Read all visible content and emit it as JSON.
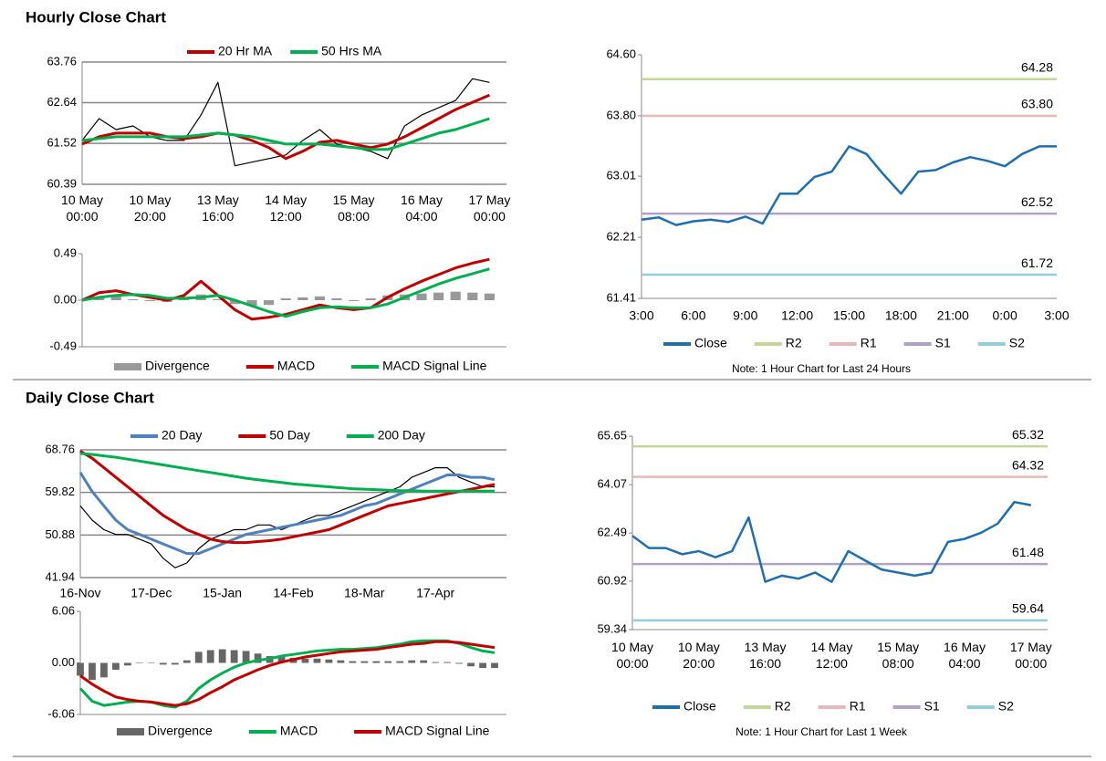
{
  "sections": [
    "Hourly Close Chart",
    "Daily Close Chart"
  ],
  "chart_data": [
    {
      "type": "line",
      "grid": true,
      "categories": [
        "10 May\n00:00",
        null,
        null,
        null,
        "10 May\n20:00",
        null,
        null,
        null,
        "13 May\n16:00",
        null,
        null,
        null,
        "14 May\n12:00",
        null,
        null,
        null,
        "15 May\n08:00",
        null,
        null,
        null,
        "16 May\n04:00",
        null,
        null,
        null,
        "17 May\n00:00"
      ],
      "ylim": [
        60.39,
        63.76
      ],
      "yticks": [
        60.39,
        61.52,
        62.64,
        63.76
      ],
      "values": [
        61.6,
        62.2,
        61.9,
        62.0,
        61.7,
        61.6,
        61.6,
        62.3,
        63.2,
        60.9,
        61.0,
        61.1,
        61.2,
        61.6,
        61.9,
        61.5,
        61.4,
        61.3,
        61.1,
        62.0,
        62.3,
        62.5,
        62.7,
        63.3,
        63.2
      ],
      "color": "#000000",
      "series": [
        {
          "name": "20 Hr MA",
          "color": "#c00000",
          "values": [
            61.5,
            61.7,
            61.8,
            61.8,
            61.8,
            61.7,
            61.65,
            61.7,
            61.8,
            61.75,
            61.6,
            61.4,
            61.1,
            61.3,
            61.55,
            61.6,
            61.5,
            61.4,
            61.5,
            61.7,
            61.95,
            62.2,
            62.45,
            62.65,
            62.85
          ]
        },
        {
          "name": "50 Hrs MA",
          "color": "#00b050",
          "values": [
            61.6,
            61.65,
            61.7,
            61.7,
            61.7,
            61.7,
            61.7,
            61.75,
            61.8,
            61.75,
            61.7,
            61.6,
            61.5,
            61.5,
            61.5,
            61.45,
            61.4,
            61.35,
            61.35,
            61.5,
            61.65,
            61.8,
            61.9,
            62.05,
            62.2
          ]
        }
      ]
    },
    {
      "type": "combo",
      "grid": false,
      "ylim": [
        -0.49,
        0.49
      ],
      "yticks": [
        -0.49,
        {
          "value": 0,
          "label": "0.00"
        },
        0.49
      ],
      "series": [
        {
          "name": "Divergence",
          "kind": "bar",
          "color": "#999999",
          "values": [
            0,
            0.03,
            0.04,
            0.01,
            -0.01,
            -0.02,
            0.02,
            0.06,
            0.01,
            -0.04,
            -0.06,
            -0.05,
            0.02,
            0.03,
            0.04,
            0.02,
            -0.01,
            0.02,
            0.05,
            0.06,
            0.07,
            0.08,
            0.09,
            0.08,
            0.07
          ]
        },
        {
          "name": "MACD",
          "color": "#c00000",
          "values": [
            0.0,
            0.08,
            0.1,
            0.06,
            0.03,
            0.0,
            0.05,
            0.2,
            0.05,
            -0.1,
            -0.2,
            -0.18,
            -0.15,
            -0.1,
            -0.05,
            -0.08,
            -0.1,
            -0.08,
            0.03,
            0.12,
            0.2,
            0.27,
            0.34,
            0.39,
            0.43
          ]
        },
        {
          "name": "MACD Signal Line",
          "color": "#00b050",
          "values": [
            0.0,
            0.03,
            0.05,
            0.06,
            0.05,
            0.02,
            0.02,
            0.03,
            0.05,
            0.0,
            -0.06,
            -0.12,
            -0.17,
            -0.12,
            -0.08,
            -0.07,
            -0.08,
            -0.08,
            -0.04,
            0.03,
            0.1,
            0.17,
            0.23,
            0.28,
            0.33
          ]
        }
      ]
    },
    {
      "type": "line",
      "grid": false,
      "categories": [
        "3:00",
        null,
        null,
        "6:00",
        null,
        null,
        "9:00",
        null,
        null,
        "12:00",
        null,
        null,
        "15:00",
        null,
        null,
        "18:00",
        null,
        null,
        "21:00",
        null,
        null,
        "0:00",
        null,
        null,
        "3:00"
      ],
      "ylim": [
        61.41,
        64.6
      ],
      "yticks": [
        61.41,
        62.21,
        63.01,
        {
          "value": 63.8,
          "label": "63.80"
        },
        {
          "value": 64.6,
          "label": "64.60"
        }
      ],
      "series": [
        {
          "name": "Close",
          "color": "#1f6fb0",
          "values": [
            62.44,
            62.47,
            62.37,
            62.42,
            62.44,
            62.41,
            62.48,
            62.39,
            62.78,
            62.78,
            63.0,
            63.07,
            63.4,
            63.3,
            63.03,
            62.78,
            63.07,
            63.09,
            63.19,
            63.26,
            63.21,
            63.14,
            63.3,
            63.4,
            63.4
          ]
        }
      ],
      "levels": [
        {
          "name": "R2",
          "color": "#c3d69b",
          "value": 64.28
        },
        {
          "name": "R1",
          "color": "#e6b9b8",
          "value": 63.8,
          "label": "63.80"
        },
        {
          "name": "S1",
          "color": "#b3a2c7",
          "value": 62.52
        },
        {
          "name": "S2",
          "color": "#93cddd",
          "value": 61.72
        }
      ],
      "note": "Note: 1 Hour Chart for Last 24 Hours"
    },
    {
      "type": "line",
      "grid": true,
      "categories": [
        "16-Nov",
        null,
        null,
        null,
        null,
        null,
        "17-Dec",
        null,
        null,
        null,
        null,
        null,
        "15-Jan",
        null,
        null,
        null,
        null,
        null,
        "14-Feb",
        null,
        null,
        null,
        null,
        null,
        "18-Mar",
        null,
        null,
        null,
        null,
        null,
        "17-Apr",
        null,
        null,
        null,
        null,
        null
      ],
      "ylim": [
        41.94,
        68.76
      ],
      "yticks": [
        41.94,
        50.88,
        59.82,
        68.76
      ],
      "values": [
        57,
        54,
        52,
        51,
        51,
        50,
        49,
        46,
        44,
        45,
        48,
        50,
        51,
        52,
        52,
        53,
        53,
        52,
        53,
        54,
        55,
        55,
        56,
        57,
        58,
        59,
        60,
        61,
        63,
        64,
        65,
        65,
        63,
        62,
        61,
        61
      ],
      "color": "#000000",
      "series": [
        {
          "name": "20 Day",
          "color": "#4f81bd",
          "values": [
            64,
            60,
            57,
            54,
            52,
            51,
            50,
            49,
            48,
            47,
            47,
            48,
            49,
            50,
            51,
            51.5,
            52,
            52.5,
            53,
            53.5,
            54,
            54.5,
            55,
            56,
            57,
            57.5,
            58.5,
            59.5,
            60.5,
            61.5,
            62.5,
            63.5,
            63.5,
            63,
            63,
            62.5
          ]
        },
        {
          "name": "50 Day",
          "color": "#c00000",
          "values": [
            68.5,
            67,
            65,
            63,
            61,
            59,
            57,
            55,
            53.5,
            52,
            51,
            50,
            49.5,
            49.3,
            49.3,
            49.5,
            49.7,
            50,
            50.5,
            51,
            51.5,
            52,
            53,
            54,
            55,
            56,
            57,
            57.5,
            58,
            58.5,
            59,
            59.5,
            60,
            60.5,
            61,
            61.5
          ]
        },
        {
          "name": "200 Day",
          "color": "#00b050",
          "values": [
            68,
            67.8,
            67.5,
            67.2,
            66.8,
            66.4,
            66,
            65.6,
            65.2,
            64.8,
            64.4,
            64,
            63.6,
            63.2,
            62.8,
            62.5,
            62.2,
            61.9,
            61.6,
            61.4,
            61.2,
            61,
            60.8,
            60.6,
            60.5,
            60.4,
            60.3,
            60.2,
            60.2,
            60.1,
            60.1,
            60.1,
            60.1,
            60.1,
            60.1,
            60.1
          ]
        }
      ]
    },
    {
      "type": "combo",
      "grid": false,
      "ylim": [
        -6.06,
        6.06
      ],
      "yticks": [
        -6.06,
        {
          "value": 0,
          "label": "0.00"
        },
        6.06
      ],
      "series": [
        {
          "name": "Divergence",
          "kind": "bar",
          "color": "#666666",
          "values": [
            -1.5,
            -2,
            -1.7,
            -0.8,
            -0.3,
            0,
            0,
            -0.2,
            -0.2,
            0.3,
            1.3,
            1.5,
            1.6,
            1.5,
            1.4,
            1.1,
            0.8,
            0.7,
            0.6,
            0.5,
            0.5,
            0.4,
            0.3,
            0.2,
            0.2,
            0.2,
            0.2,
            0.2,
            0.3,
            0.3,
            0.1,
            0.1,
            -0.1,
            -0.4,
            -0.6,
            -0.6
          ]
        },
        {
          "name": "MACD",
          "color": "#00b050",
          "values": [
            -3,
            -4.5,
            -5,
            -4.8,
            -4.6,
            -4.5,
            -4.6,
            -5,
            -5.2,
            -4.5,
            -3,
            -2,
            -1.2,
            -0.5,
            0,
            0.3,
            0.5,
            0.8,
            1,
            1.2,
            1.4,
            1.5,
            1.6,
            1.6,
            1.7,
            1.8,
            2,
            2.2,
            2.5,
            2.6,
            2.6,
            2.6,
            2.3,
            1.8,
            1.4,
            1.2
          ]
        },
        {
          "name": "MACD Signal Line",
          "color": "#c00000",
          "values": [
            -1.5,
            -2.5,
            -3.3,
            -4,
            -4.3,
            -4.5,
            -4.6,
            -4.8,
            -5,
            -4.8,
            -4.3,
            -3.5,
            -2.8,
            -2,
            -1.4,
            -0.8,
            -0.3,
            0.1,
            0.4,
            0.7,
            0.9,
            1.1,
            1.3,
            1.4,
            1.5,
            1.6,
            1.8,
            2,
            2.2,
            2.3,
            2.5,
            2.5,
            2.4,
            2.2,
            2,
            1.8
          ]
        }
      ]
    },
    {
      "type": "line",
      "grid": false,
      "categories": [
        "10 May\n00:00",
        null,
        null,
        null,
        "10 May\n20:00",
        null,
        null,
        null,
        "13 May\n16:00",
        null,
        null,
        null,
        "14 May\n12:00",
        null,
        null,
        null,
        "15 May\n08:00",
        null,
        null,
        null,
        "16 May\n04:00",
        null,
        null,
        null,
        "17 May\n00:00"
      ],
      "ylim": [
        59.34,
        65.65
      ],
      "yticks": [
        59.34,
        60.92,
        62.49,
        64.07,
        65.65
      ],
      "series": [
        {
          "name": "Close",
          "color": "#1f6fb0",
          "values": [
            62.4,
            62.0,
            62.0,
            61.8,
            61.9,
            61.7,
            61.9,
            63.0,
            60.9,
            61.1,
            61.0,
            61.2,
            60.9,
            61.9,
            61.6,
            61.3,
            61.2,
            61.1,
            61.2,
            62.2,
            62.3,
            62.5,
            62.8,
            63.5,
            63.4
          ]
        }
      ],
      "levels": [
        {
          "name": "R2",
          "color": "#c3d69b",
          "value": 65.32
        },
        {
          "name": "R1",
          "color": "#e6b9b8",
          "value": 64.32
        },
        {
          "name": "S1",
          "color": "#b3a2c7",
          "value": 61.48
        },
        {
          "name": "S2",
          "color": "#93cddd",
          "value": 59.64
        }
      ],
      "note": "Note: 1 Hour Chart for Last 1 Week"
    }
  ]
}
